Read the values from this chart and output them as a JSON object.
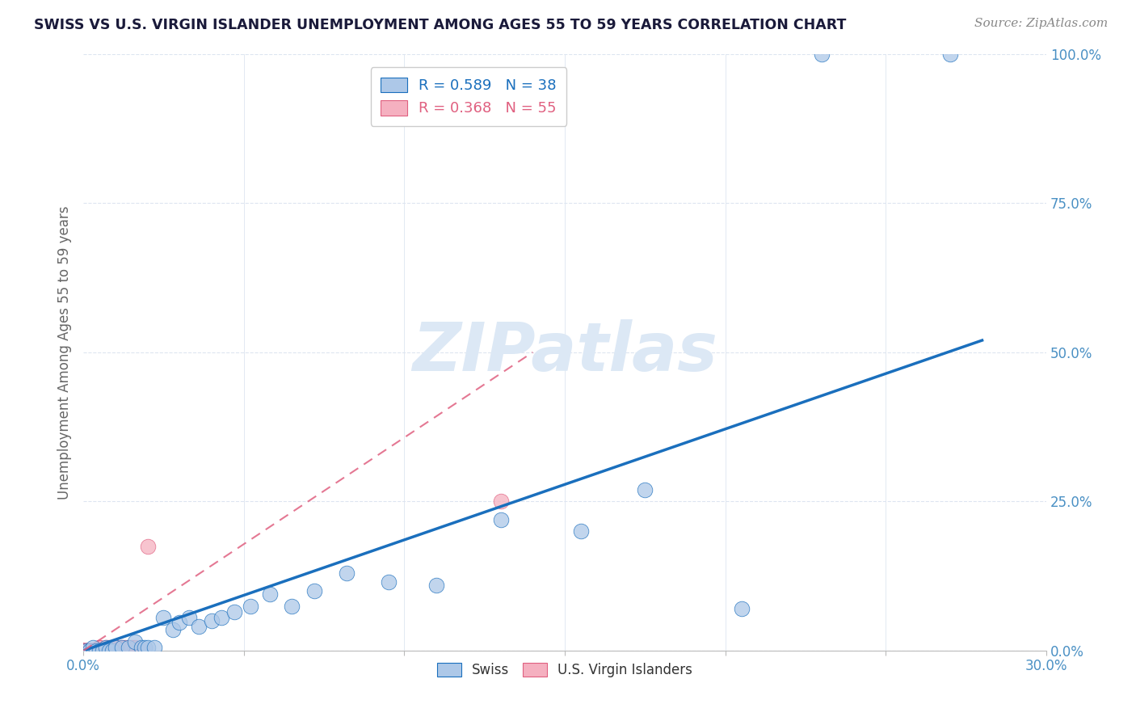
{
  "title": "SWISS VS U.S. VIRGIN ISLANDER UNEMPLOYMENT AMONG AGES 55 TO 59 YEARS CORRELATION CHART",
  "source": "Source: ZipAtlas.com",
  "ylabel_label": "Unemployment Among Ages 55 to 59 years",
  "xlim": [
    0.0,
    0.3
  ],
  "ylim": [
    0.0,
    1.0
  ],
  "xticks": [
    0.0,
    0.05,
    0.1,
    0.15,
    0.2,
    0.25,
    0.3
  ],
  "yticks": [
    0.0,
    0.25,
    0.5,
    0.75,
    1.0
  ],
  "yticklabels": [
    "0.0%",
    "25.0%",
    "50.0%",
    "75.0%",
    "100.0%"
  ],
  "swiss_R": 0.589,
  "swiss_N": 38,
  "usvi_R": 0.368,
  "usvi_N": 55,
  "swiss_color": "#adc8e8",
  "usvi_color": "#f5b0c0",
  "swiss_line_color": "#1a6fbd",
  "usvi_line_color": "#e06080",
  "watermark_color": "#dce8f5",
  "background_color": "#ffffff",
  "grid_color": "#dde5f0",
  "swiss_x": [
    0.001,
    0.002,
    0.003,
    0.004,
    0.005,
    0.006,
    0.007,
    0.008,
    0.009,
    0.01,
    0.012,
    0.014,
    0.016,
    0.018,
    0.019,
    0.02,
    0.022,
    0.025,
    0.028,
    0.03,
    0.033,
    0.036,
    0.04,
    0.043,
    0.047,
    0.052,
    0.058,
    0.065,
    0.072,
    0.082,
    0.095,
    0.11,
    0.13,
    0.155,
    0.175,
    0.205,
    0.23,
    0.27
  ],
  "swiss_y": [
    0.0,
    0.0,
    0.005,
    0.0,
    0.0,
    0.0,
    0.005,
    0.0,
    0.0,
    0.005,
    0.005,
    0.005,
    0.015,
    0.005,
    0.005,
    0.005,
    0.005,
    0.055,
    0.035,
    0.048,
    0.055,
    0.04,
    0.05,
    0.055,
    0.065,
    0.075,
    0.095,
    0.075,
    0.1,
    0.13,
    0.115,
    0.11,
    0.22,
    0.2,
    0.27,
    0.07,
    1.0,
    1.0
  ],
  "usvi_x": [
    0.0,
    0.0,
    0.0,
    0.0,
    0.0,
    0.0,
    0.0,
    0.0,
    0.0,
    0.0,
    0.001,
    0.001,
    0.001,
    0.001,
    0.001,
    0.001,
    0.001,
    0.002,
    0.002,
    0.002,
    0.002,
    0.002,
    0.003,
    0.003,
    0.003,
    0.003,
    0.004,
    0.004,
    0.004,
    0.004,
    0.005,
    0.005,
    0.005,
    0.005,
    0.006,
    0.006,
    0.006,
    0.007,
    0.007,
    0.007,
    0.008,
    0.008,
    0.009,
    0.009,
    0.01,
    0.01,
    0.01,
    0.011,
    0.012,
    0.013,
    0.015,
    0.016,
    0.018,
    0.02,
    0.13
  ],
  "usvi_y": [
    0.0,
    0.0,
    0.0,
    0.0,
    0.0,
    0.0,
    0.0,
    0.0,
    0.0,
    0.0,
    0.0,
    0.0,
    0.0,
    0.0,
    0.0,
    0.0,
    0.0,
    0.0,
    0.0,
    0.0,
    0.0,
    0.0,
    0.0,
    0.0,
    0.0,
    0.0,
    0.0,
    0.0,
    0.0,
    0.0,
    0.0,
    0.005,
    0.005,
    0.0,
    0.0,
    0.0,
    0.0,
    0.0,
    0.0,
    0.005,
    0.0,
    0.005,
    0.0,
    0.005,
    0.0,
    0.005,
    0.005,
    0.0,
    0.005,
    0.005,
    0.005,
    0.005,
    0.0,
    0.175,
    0.25
  ],
  "swiss_line_x": [
    0.0,
    0.28
  ],
  "swiss_line_y": [
    0.0,
    0.52
  ],
  "usvi_line_x": [
    0.0,
    0.14
  ],
  "usvi_line_y": [
    0.0,
    0.5
  ]
}
